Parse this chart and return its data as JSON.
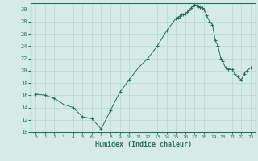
{
  "x": [
    0,
    1,
    2,
    3,
    4,
    5,
    6,
    7,
    8,
    9,
    10,
    11,
    12,
    13,
    14,
    15,
    15.2,
    15.4,
    15.6,
    15.8,
    16.0,
    16.2,
    16.4,
    16.6,
    16.8,
    17.0,
    17.2,
    17.4,
    17.6,
    17.8,
    18.0,
    18.3,
    18.6,
    18.9,
    19.2,
    19.5,
    19.8,
    20.0,
    20.3,
    20.6,
    21.0,
    21.3,
    21.6,
    22.0,
    22.3,
    22.6,
    23.0
  ],
  "y": [
    16.2,
    16.0,
    15.5,
    14.5,
    14.0,
    12.5,
    12.2,
    10.5,
    13.5,
    16.5,
    18.5,
    20.5,
    22.0,
    24.0,
    26.5,
    28.5,
    28.7,
    28.9,
    29.1,
    29.2,
    29.3,
    29.5,
    29.8,
    30.2,
    30.5,
    30.8,
    30.6,
    30.5,
    30.4,
    30.2,
    30.0,
    29.0,
    28.0,
    27.5,
    25.0,
    24.0,
    22.0,
    21.5,
    20.5,
    20.3,
    20.2,
    19.5,
    19.0,
    18.5,
    19.5,
    20.0,
    20.5
  ],
  "line_color": "#2d6e5e",
  "marker": "+",
  "marker_size": 3,
  "bg_color": "#d5ece6",
  "grid_color": "#b8d8d0",
  "xlabel": "Humidex (Indice chaleur)",
  "xlim": [
    -0.5,
    23.5
  ],
  "ylim": [
    10,
    31
  ],
  "yticks": [
    10,
    12,
    14,
    16,
    18,
    20,
    22,
    24,
    26,
    28,
    30
  ],
  "xticks": [
    0,
    1,
    2,
    3,
    4,
    5,
    6,
    7,
    8,
    9,
    10,
    11,
    12,
    13,
    14,
    15,
    16,
    17,
    18,
    19,
    20,
    21,
    22,
    23
  ]
}
